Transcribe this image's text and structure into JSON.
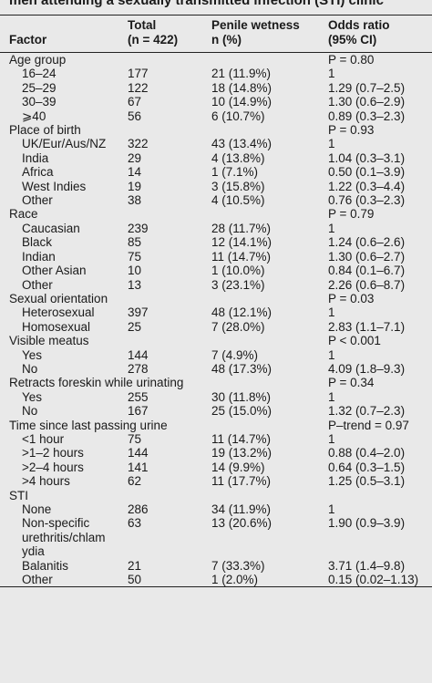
{
  "title": "men attending a sexually transmitted infection (STI) clinic",
  "header": {
    "factor": "Factor",
    "total": [
      "Total",
      "(n = 422)"
    ],
    "wetness": [
      "Penile wetness",
      "n (%)"
    ],
    "odds": [
      "Odds ratio",
      "(95% CI)"
    ]
  },
  "groups": [
    {
      "label": "Age group",
      "p": "P = 0.80",
      "rows": [
        [
          "16–24",
          177,
          "21 (11.9%)",
          "1"
        ],
        [
          "25–29",
          122,
          "18 (14.8%)",
          "1.29 (0.7–2.5)"
        ],
        [
          "30–39",
          67,
          "10 (14.9%)",
          "1.30 (0.6–2.9)"
        ],
        [
          "⩾40",
          56,
          "6 (10.7%)",
          "0.89 (0.3–2.3)"
        ]
      ]
    },
    {
      "label": "Place of birth",
      "p": "P = 0.93",
      "rows": [
        [
          "UK/Eur/Aus/NZ",
          322,
          "43 (13.4%)",
          "1"
        ],
        [
          "India",
          29,
          "4 (13.8%)",
          "1.04 (0.3–3.1)"
        ],
        [
          "Africa",
          14,
          "1 (7.1%)",
          "0.50 (0.1–3.9)"
        ],
        [
          "West Indies",
          19,
          "3 (15.8%)",
          "1.22 (0.3–4.4)"
        ],
        [
          "Other",
          38,
          "4 (10.5%)",
          "0.76 (0.3–2.3)"
        ]
      ]
    },
    {
      "label": "Race",
      "p": "P = 0.79",
      "rows": [
        [
          "Caucasian",
          239,
          "28 (11.7%)",
          "1"
        ],
        [
          "Black",
          85,
          "12 (14.1%)",
          "1.24 (0.6–2.6)"
        ],
        [
          "Indian",
          75,
          "11 (14.7%)",
          "1.30 (0.6–2.7)"
        ],
        [
          "Other Asian",
          10,
          "1 (10.0%)",
          "0.84 (0.1–6.7)"
        ],
        [
          "Other",
          13,
          "3 (23.1%)",
          "2.26 (0.6–8.7)"
        ]
      ]
    },
    {
      "label": "Sexual orientation",
      "p": "P = 0.03",
      "rows": [
        [
          "Heterosexual",
          397,
          "48 (12.1%)",
          "1"
        ],
        [
          "Homosexual",
          25,
          "7 (28.0%)",
          "2.83 (1.1–7.1)"
        ]
      ]
    },
    {
      "label": "Visible meatus",
      "p": "P < 0.001",
      "rows": [
        [
          "Yes",
          144,
          "7 (4.9%)",
          "1"
        ],
        [
          "No",
          278,
          "48 (17.3%)",
          "4.09 (1.8–9.3)"
        ]
      ]
    },
    {
      "label": "Retracts foreskin while urinating",
      "p": "P = 0.34",
      "rows": [
        [
          "Yes",
          255,
          "30 (11.8%)",
          "1"
        ],
        [
          "No",
          167,
          "25 (15.0%)",
          "1.32 (0.7–2.3)"
        ]
      ]
    },
    {
      "label": "Time since last passing urine",
      "p": "P–trend = 0.97",
      "rows": [
        [
          "<1 hour",
          75,
          "11 (14.7%)",
          "1"
        ],
        [
          ">1–2 hours",
          144,
          "19 (13.2%)",
          "0.88 (0.4–2.0)"
        ],
        [
          ">2–4 hours",
          141,
          "14 (9.9%)",
          "0.64 (0.3–1.5)"
        ],
        [
          ">4 hours",
          62,
          "11 (17.7%)",
          "1.25 (0.5–3.1)"
        ]
      ]
    },
    {
      "label": "STI",
      "rows": [
        [
          "None",
          286,
          "34 (11.9%)",
          "1"
        ],
        [
          "Non-specific urethritis/chlamydia",
          63,
          "13 (20.6%)",
          "1.90 (0.9–3.9)"
        ],
        [
          "Balanitis",
          21,
          "7 (33.3%)",
          "3.71 (1.4–9.8)"
        ],
        [
          "Other",
          50,
          "1 (2.0%)",
          "0.15 (0.02–1.13)"
        ]
      ]
    }
  ]
}
